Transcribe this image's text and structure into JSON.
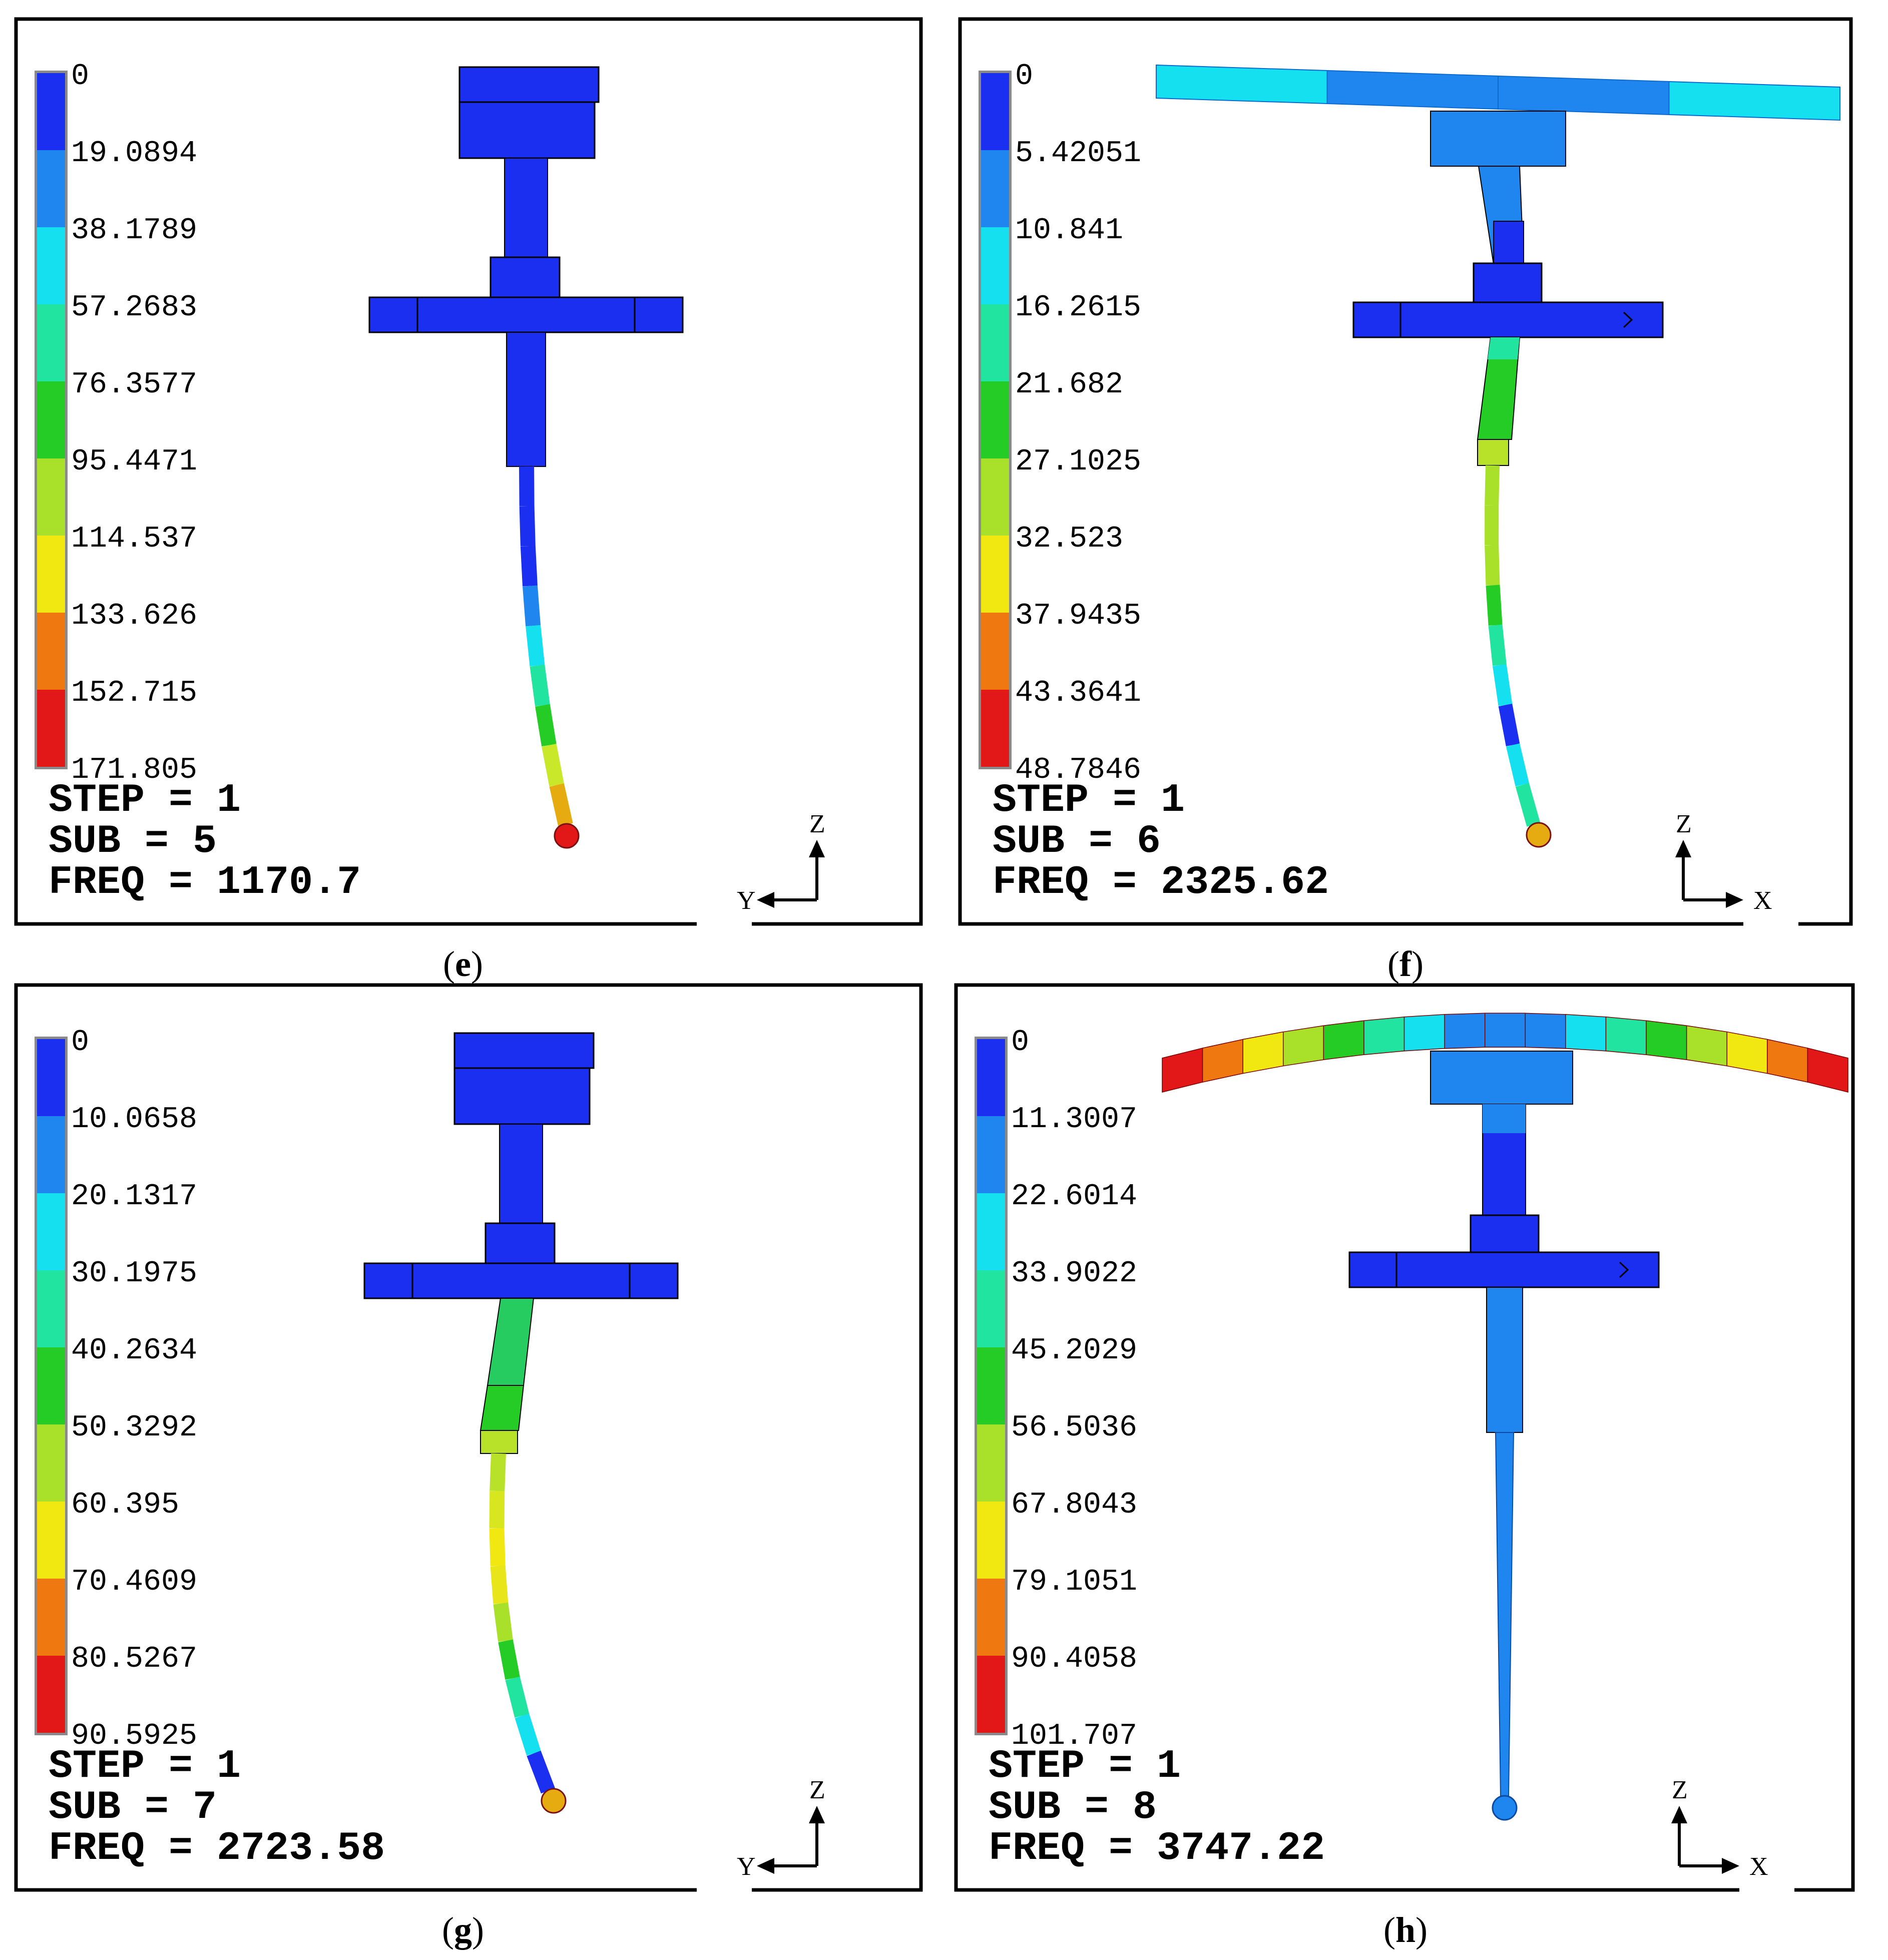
{
  "panels": [
    {
      "id": "e",
      "caption_letter": "e",
      "legend": [
        "0",
        "19.0894",
        "38.1789",
        "57.2683",
        "76.3577",
        "95.4471",
        "114.537",
        "133.626",
        "152.715",
        "171.805"
      ],
      "step_text": "STEP = 1",
      "sub_text": "SUB  = 5",
      "freq_text": "FREQ = 1170.7",
      "triad": {
        "vertical": "Z",
        "horizontal": "Y",
        "direction": "left"
      },
      "variant": "side-yz-short",
      "head_color": "#1a2ff0",
      "upper_shaft_color": "#1a2ff0",
      "flange_color": "#1a2ff0",
      "lower_shaft_color": "#1a2ff0",
      "stylus_gradient": [
        "#1a2ff0",
        "#1a2ff0",
        "#1a2ff0",
        "#1f86f0",
        "#15e0f0",
        "#20e4a0",
        "#26cc26",
        "#c8e829",
        "#e6ab10"
      ],
      "tip_color": "#e21717"
    },
    {
      "id": "f",
      "caption_letter": "f",
      "legend": [
        "0",
        "5.42051",
        "10.841",
        "16.2615",
        "21.682",
        "27.1025",
        "32.523",
        "37.9435",
        "43.3641",
        "48.7846"
      ],
      "step_text": "STEP = 1",
      "sub_text": "SUB  = 6",
      "freq_text": "FREQ = 2325.62",
      "triad": {
        "vertical": "Z",
        "horizontal": "X",
        "direction": "right"
      },
      "variant": "front-xz-long",
      "bar_colors": [
        "#15e0f0",
        "#1f86f0",
        "#1f86f0",
        "#15e0f0"
      ],
      "hub_color": "#1f86f0",
      "upper_shaft_color": "#1f86f0",
      "flange_color": "#1a2ff0",
      "lower_shaft_color": "#26cc26",
      "stylus_gradient": [
        "#a8e02a",
        "#a8e02a",
        "#a8e02a",
        "#26cc26",
        "#20e4a0",
        "#15e0f0",
        "#1a2ff0",
        "#15e0f0",
        "#20e4a0"
      ],
      "tip_color": "#e6ab10"
    },
    {
      "id": "g",
      "caption_letter": "g",
      "legend": [
        "0",
        "10.0658",
        "20.1317",
        "30.1975",
        "40.2634",
        "50.3292",
        "60.395",
        "70.4609",
        "80.5267",
        "90.5925"
      ],
      "step_text": "STEP = 1",
      "sub_text": "SUB  = 7",
      "freq_text": "FREQ = 2723.58",
      "triad": {
        "vertical": "Z",
        "horizontal": "Y",
        "direction": "left"
      },
      "variant": "side-yz-short",
      "head_color": "#1a2ff0",
      "upper_shaft_color": "#1a2ff0",
      "flange_color": "#1a2ff0",
      "lower_shaft_color": "#26cc60",
      "stylus_gradient": [
        "#b8e22a",
        "#d8e620",
        "#f0e810",
        "#e8e61a",
        "#a8e02a",
        "#26cc26",
        "#20e4a0",
        "#15e0f0",
        "#1a2ff0"
      ],
      "tip_color": "#e6ab10"
    },
    {
      "id": "h",
      "caption_letter": "h",
      "legend": [
        "0",
        "11.3007",
        "22.6014",
        "33.9022",
        "45.2029",
        "56.5036",
        "67.8043",
        "79.1051",
        "90.4058",
        "101.707"
      ],
      "step_text": "STEP = 1",
      "sub_text": "SUB  = 8",
      "freq_text": "FREQ = 3747.22",
      "triad": {
        "vertical": "Z",
        "horizontal": "X",
        "direction": "right"
      },
      "variant": "front-xz-long",
      "bar_colors": [
        "#e21717",
        "#f07810",
        "#f0e810",
        "#a8e02a",
        "#26cc26",
        "#20e4a0",
        "#15e0f0",
        "#1f86f0",
        "#1f86f0",
        "#1f86f0",
        "#15e0f0",
        "#20e4a0",
        "#26cc26",
        "#a8e02a",
        "#f0e810",
        "#f07810",
        "#e21717"
      ],
      "hub_color": "#1f86f0",
      "upper_shaft_color": "#1a2ff0",
      "flange_color": "#1a2ff0",
      "lower_shaft_color": "#1f86f0",
      "stylus_gradient": [
        "#1f86f0",
        "#1f86f0",
        "#1f86f0",
        "#1f86f0",
        "#1f86f0",
        "#1f86f0",
        "#1f86f0",
        "#1f86f0",
        "#1f86f0"
      ],
      "tip_color": "#1f86f0"
    }
  ],
  "legend_colors": [
    "#1a2ff0",
    "#1f86f0",
    "#15e0f0",
    "#20e4a0",
    "#26cc26",
    "#a8e02a",
    "#f0e810",
    "#f07810",
    "#e21717"
  ]
}
